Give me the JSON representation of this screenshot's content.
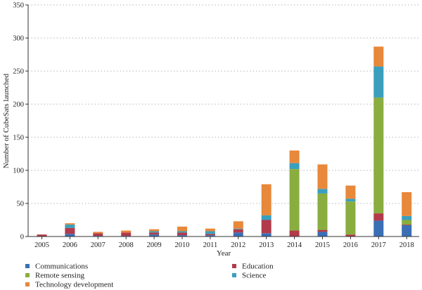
{
  "chart_data": {
    "type": "bar",
    "stacked": true,
    "xlabel": "Year",
    "ylabel": "Number of CubeSats launched",
    "ylim": [
      0,
      350
    ],
    "yticks": [
      0,
      50,
      100,
      150,
      200,
      250,
      300,
      350
    ],
    "grid": "horizontal dotted",
    "legend_position": "bottom",
    "categories": [
      "2005",
      "2006",
      "2007",
      "2008",
      "2009",
      "2010",
      "2011",
      "2012",
      "2013",
      "2014",
      "2015",
      "2016",
      "2017",
      "2018"
    ],
    "series": [
      {
        "name": "Communications",
        "color": "#3a6fb5",
        "values": [
          0,
          4,
          1,
          1,
          3,
          2,
          2,
          6,
          5,
          0,
          7,
          0,
          24,
          17
        ]
      },
      {
        "name": "Education",
        "color": "#b23a4a",
        "values": [
          3,
          9,
          4,
          5,
          3,
          4,
          2,
          5,
          20,
          9,
          3,
          3,
          11,
          1
        ]
      },
      {
        "name": "Remote sensing",
        "color": "#8aad3f",
        "values": [
          0,
          0,
          0,
          0,
          0,
          0,
          0,
          0,
          0,
          93,
          55,
          50,
          175,
          7
        ]
      },
      {
        "name": "Science",
        "color": "#3a9fbd",
        "values": [
          0,
          5,
          0,
          0,
          2,
          2,
          4,
          1,
          7,
          9,
          7,
          4,
          47,
          6
        ]
      },
      {
        "name": "Technology development",
        "color": "#e8883a",
        "values": [
          0,
          2,
          2,
          3,
          3,
          7,
          4,
          11,
          47,
          19,
          37,
          20,
          30,
          36
        ]
      }
    ]
  }
}
